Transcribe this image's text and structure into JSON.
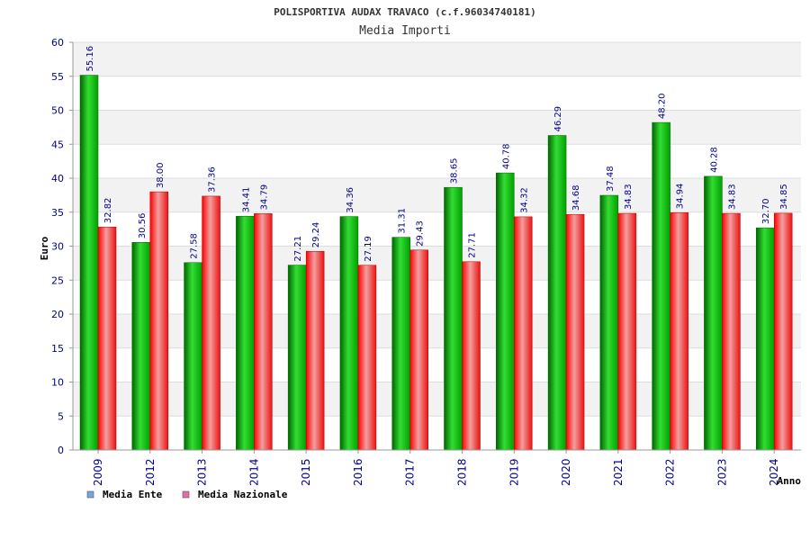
{
  "chart_data": {
    "type": "bar",
    "title": "POLISPORTIVA AUDAX TRAVACO (c.f.96034740181)",
    "subtitle": "Media Importi",
    "ylabel": "Euro",
    "xlabel": "Anno",
    "ylim": [
      0,
      60
    ],
    "yticks": [
      0,
      5,
      10,
      15,
      20,
      25,
      30,
      35,
      40,
      45,
      50,
      55,
      60
    ],
    "grid": true,
    "legend_position": "bottom-left",
    "categories": [
      "2009",
      "2012",
      "2013",
      "2014",
      "2015",
      "2016",
      "2017",
      "2018",
      "2019",
      "2020",
      "2021",
      "2022",
      "2023",
      "2024"
    ],
    "series": [
      {
        "name": "Media Ente",
        "color": "#00b000",
        "legend_color": "#6fa8dc",
        "values": [
          55.16,
          30.56,
          27.58,
          34.41,
          27.21,
          34.36,
          31.31,
          38.65,
          40.78,
          46.29,
          37.48,
          48.2,
          40.28,
          32.7
        ],
        "labels": [
          "55.16",
          "30.56",
          "27.58",
          "34.41",
          "27.21",
          "34.36",
          "31.31",
          "38.65",
          "40.78",
          "46.29",
          "37.48",
          "48.20",
          "40.28",
          "32.70"
        ]
      },
      {
        "name": "Media Nazionale",
        "color": "#e00000",
        "legend_color": "#e06fa8",
        "values": [
          32.82,
          38.0,
          37.36,
          34.79,
          29.24,
          27.19,
          29.43,
          27.71,
          34.32,
          34.68,
          34.83,
          34.94,
          34.83,
          34.85
        ],
        "labels": [
          "32.82",
          "38.00",
          "37.36",
          "34.79",
          "29.24",
          "27.19",
          "29.43",
          "27.71",
          "34.32",
          "34.68",
          "34.83",
          "34.94",
          "34.83",
          "34.85"
        ]
      }
    ]
  }
}
